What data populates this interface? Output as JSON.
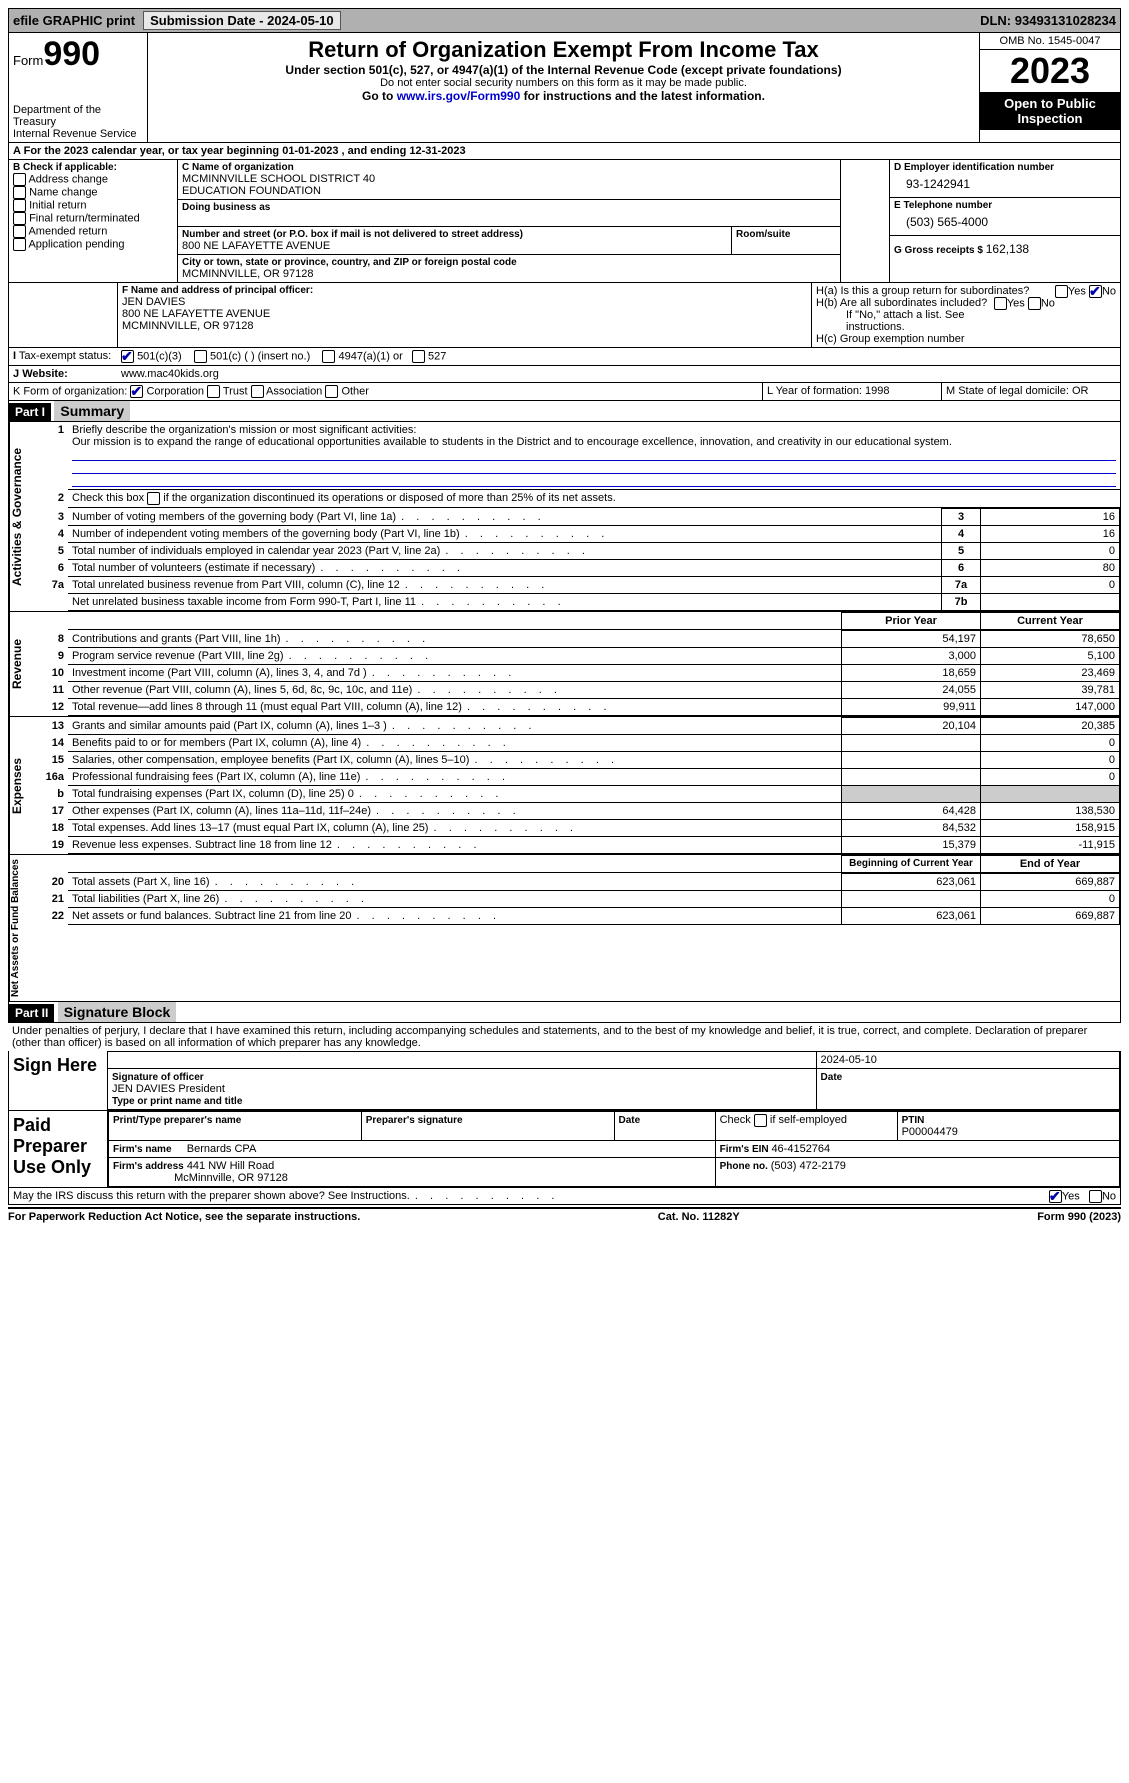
{
  "topbar": {
    "efile": "efile GRAPHIC print",
    "submission_label": "Submission Date - ",
    "submission_date": "2024-05-10",
    "dln_label": "DLN: ",
    "dln": "93493131028234"
  },
  "header": {
    "form_word": "Form",
    "form_num": "990",
    "dept": "Department of the Treasury",
    "irs": "Internal Revenue Service",
    "title": "Return of Organization Exempt From Income Tax",
    "sub1": "Under section 501(c), 527, or 4947(a)(1) of the Internal Revenue Code (except private foundations)",
    "sub2": "Do not enter social security numbers on this form as it may be made public.",
    "sub3_pre": "Go to ",
    "sub3_link": "www.irs.gov/Form990",
    "sub3_post": " for instructions and the latest information.",
    "omb": "OMB No. 1545-0047",
    "year": "2023",
    "inspect": "Open to Public Inspection"
  },
  "lineA": "For the 2023 calendar year, or tax year beginning 01-01-2023   , and ending 12-31-2023",
  "boxB": {
    "title": "B Check if applicable:",
    "opts": [
      "Address change",
      "Name change",
      "Initial return",
      "Final return/terminated",
      "Amended return",
      "Application pending"
    ]
  },
  "boxC": {
    "name_label": "C Name of organization",
    "name1": "MCMINNVILLE SCHOOL DISTRICT 40",
    "name2": "EDUCATION FOUNDATION",
    "dba_label": "Doing business as",
    "addr_label": "Number and street (or P.O. box if mail is not delivered to street address)",
    "room_label": "Room/suite",
    "addr": "800 NE LAFAYETTE AVENUE",
    "city_label": "City or town, state or province, country, and ZIP or foreign postal code",
    "city": "MCMINNVILLE, OR  97128"
  },
  "boxD": {
    "label": "D Employer identification number",
    "val": "93-1242941"
  },
  "boxE": {
    "label": "E Telephone number",
    "val": "(503) 565-4000"
  },
  "boxG": {
    "label": "G Gross receipts $ ",
    "val": "162,138"
  },
  "boxF": {
    "label": "F  Name and address of principal officer:",
    "name": "JEN DAVIES",
    "addr": "800 NE LAFAYETTE AVENUE",
    "city": "MCMINNVILLE, OR  97128"
  },
  "boxH": {
    "a": "H(a)  Is this a group return for subordinates?",
    "b": "H(b)  Are all subordinates included?",
    "b_note": "If \"No,\" attach a list. See instructions.",
    "c": "H(c)  Group exemption number ",
    "yes": "Yes",
    "no": "No"
  },
  "boxI": {
    "label": "Tax-exempt status:",
    "o1": "501(c)(3)",
    "o2": "501(c) (  ) (insert no.)",
    "o3": "4947(a)(1) or",
    "o4": "527"
  },
  "boxJ": {
    "label": "Website:",
    "val": "www.mac40kids.org"
  },
  "boxK": {
    "label": "K Form of organization:",
    "o1": "Corporation",
    "o2": "Trust",
    "o3": "Association",
    "o4": "Other"
  },
  "boxL": {
    "label": "L Year of formation: ",
    "val": "1998"
  },
  "boxM": {
    "label": "M State of legal domicile: ",
    "val": "OR"
  },
  "part1": {
    "hdr": "Part I",
    "title": "Summary",
    "q1a": "Briefly describe the organization's mission or most significant activities:",
    "q1b": "Our mission is to expand the range of educational opportunities available to students in the District and to encourage excellence, innovation, and creativity in our educational system.",
    "q2": "Check this box      if the organization discontinued its operations or disposed of more than 25% of its net assets.",
    "side_ag": "Activities & Governance",
    "side_rev": "Revenue",
    "side_exp": "Expenses",
    "side_na": "Net Assets or Fund Balances",
    "col_prior": "Prior Year",
    "col_curr": "Current Year",
    "col_beg": "Beginning of Current Year",
    "col_end": "End of Year",
    "lines_ag": [
      {
        "n": "3",
        "d": "Number of voting members of the governing body (Part VI, line 1a)",
        "box": "3",
        "v": "16"
      },
      {
        "n": "4",
        "d": "Number of independent voting members of the governing body (Part VI, line 1b)",
        "box": "4",
        "v": "16"
      },
      {
        "n": "5",
        "d": "Total number of individuals employed in calendar year 2023 (Part V, line 2a)",
        "box": "5",
        "v": "0"
      },
      {
        "n": "6",
        "d": "Total number of volunteers (estimate if necessary)",
        "box": "6",
        "v": "80"
      },
      {
        "n": "7a",
        "d": "Total unrelated business revenue from Part VIII, column (C), line 12",
        "box": "7a",
        "v": "0"
      },
      {
        "n": "",
        "d": "Net unrelated business taxable income from Form 990-T, Part I, line 11",
        "box": "7b",
        "v": ""
      }
    ],
    "lines_rev": [
      {
        "n": "8",
        "d": "Contributions and grants (Part VIII, line 1h)",
        "p": "54,197",
        "c": "78,650"
      },
      {
        "n": "9",
        "d": "Program service revenue (Part VIII, line 2g)",
        "p": "3,000",
        "c": "5,100"
      },
      {
        "n": "10",
        "d": "Investment income (Part VIII, column (A), lines 3, 4, and 7d )",
        "p": "18,659",
        "c": "23,469"
      },
      {
        "n": "11",
        "d": "Other revenue (Part VIII, column (A), lines 5, 6d, 8c, 9c, 10c, and 11e)",
        "p": "24,055",
        "c": "39,781"
      },
      {
        "n": "12",
        "d": "Total revenue—add lines 8 through 11 (must equal Part VIII, column (A), line 12)",
        "p": "99,911",
        "c": "147,000"
      }
    ],
    "lines_exp": [
      {
        "n": "13",
        "d": "Grants and similar amounts paid (Part IX, column (A), lines 1–3 )",
        "p": "20,104",
        "c": "20,385"
      },
      {
        "n": "14",
        "d": "Benefits paid to or for members (Part IX, column (A), line 4)",
        "p": "",
        "c": "0"
      },
      {
        "n": "15",
        "d": "Salaries, other compensation, employee benefits (Part IX, column (A), lines 5–10)",
        "p": "",
        "c": "0"
      },
      {
        "n": "16a",
        "d": "Professional fundraising fees (Part IX, column (A), line 11e)",
        "p": "",
        "c": "0"
      },
      {
        "n": "b",
        "d": "Total fundraising expenses (Part IX, column (D), line 25) 0",
        "p": "SHADE",
        "c": "SHADE"
      },
      {
        "n": "17",
        "d": "Other expenses (Part IX, column (A), lines 11a–11d, 11f–24e)",
        "p": "64,428",
        "c": "138,530"
      },
      {
        "n": "18",
        "d": "Total expenses. Add lines 13–17 (must equal Part IX, column (A), line 25)",
        "p": "84,532",
        "c": "158,915"
      },
      {
        "n": "19",
        "d": "Revenue less expenses. Subtract line 18 from line 12",
        "p": "15,379",
        "c": "-11,915"
      }
    ],
    "lines_na": [
      {
        "n": "20",
        "d": "Total assets (Part X, line 16)",
        "p": "623,061",
        "c": "669,887"
      },
      {
        "n": "21",
        "d": "Total liabilities (Part X, line 26)",
        "p": "",
        "c": "0"
      },
      {
        "n": "22",
        "d": "Net assets or fund balances. Subtract line 21 from line 20",
        "p": "623,061",
        "c": "669,887"
      }
    ]
  },
  "part2": {
    "hdr": "Part II",
    "title": "Signature Block",
    "declare": "Under penalties of perjury, I declare that I have examined this return, including accompanying schedules and statements, and to the best of my knowledge and belief, it is true, correct, and complete. Declaration of preparer (other than officer) is based on all information of which preparer has any knowledge.",
    "sign_here": "Sign Here",
    "sig_label": "Signature of officer",
    "sig_name": "JEN DAVIES President",
    "sig_type": "Type or print name and title",
    "date_label": "Date",
    "date_val": "2024-05-10",
    "paid": "Paid Preparer Use Only",
    "prep_name_label": "Print/Type preparer's name",
    "prep_sig_label": "Preparer's signature",
    "check_self": "Check        if self-employed",
    "ptin_label": "PTIN",
    "ptin": "P00004479",
    "firm_name_label": "Firm's name",
    "firm_name": "Bernards CPA",
    "firm_ein_label": "Firm's EIN ",
    "firm_ein": "46-4152764",
    "firm_addr_label": "Firm's address",
    "firm_addr1": "441 NW Hill Road",
    "firm_addr2": "McMinnville, OR  97128",
    "phone_label": "Phone no. ",
    "phone": "(503) 472-2179",
    "discuss": "May the IRS discuss this return with the preparer shown above? See Instructions.",
    "yes": "Yes",
    "no": "No"
  },
  "footer": {
    "left": "For Paperwork Reduction Act Notice, see the separate instructions.",
    "mid": "Cat. No. 11282Y",
    "right": "Form 990 (2023)"
  }
}
